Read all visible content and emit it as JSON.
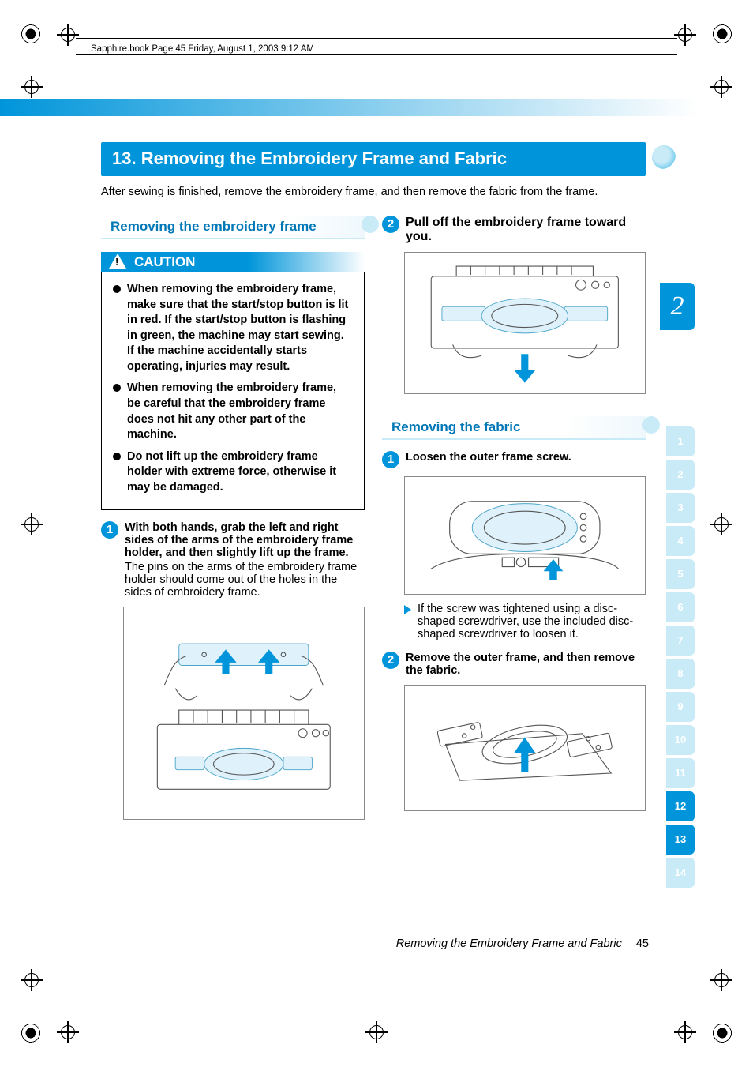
{
  "brand_blue": "#0095da",
  "light_blue": "#c9ebf8",
  "header_line": "Sapphire.book  Page 45  Friday, August 1, 2003  9:12 AM",
  "section_number": "13.",
  "section_title": "13. Removing the Embroidery Frame and Fabric",
  "intro": "After sewing is finished, remove the embroidery frame, and then remove the fabric from the frame.",
  "subhead_left": "Removing the embroidery frame",
  "caution_label": "CAUTION",
  "caution_items": [
    "When removing the embroidery frame, make sure that the start/stop button is lit in red. If the start/stop button is flashing in green, the machine may start sewing. If the machine accidentally starts operating, injuries may result.",
    "When removing the embroidery frame, be careful that the embroidery frame does not hit any other part of the machine.",
    "Do not lift up the embroidery frame holder with extreme force, otherwise it may be damaged."
  ],
  "left_steps": {
    "s1_num": "1",
    "s1_bold": "With both hands, grab the left and right sides of the arms of the embroidery frame holder, and then slightly lift up the frame.",
    "s1_plain": "The pins on the arms of the embroidery frame holder should come out of the holes in the sides of embroidery frame."
  },
  "subhead_right": "Removing the fabric",
  "right_steps": {
    "s2_num": "2",
    "s2_bold": "Pull off the embroidery frame toward you.",
    "r1_num": "1",
    "r1_bold": "Loosen the outer frame screw.",
    "r1_note": "If the screw was tightened using a disc-shaped screwdriver, use the included disc-shaped screwdriver to loosen it.",
    "r2_num": "2",
    "r2_bold": "Remove the outer frame, and then remove the fabric."
  },
  "chapter_tab": "2",
  "side_tabs": [
    "1",
    "2",
    "3",
    "4",
    "5",
    "6",
    "7",
    "8",
    "9",
    "10",
    "11",
    "12",
    "13",
    "14"
  ],
  "active_tabs": [
    12,
    13
  ],
  "footer_title": "Removing the Embroidery Frame and Fabric",
  "footer_page": "45"
}
